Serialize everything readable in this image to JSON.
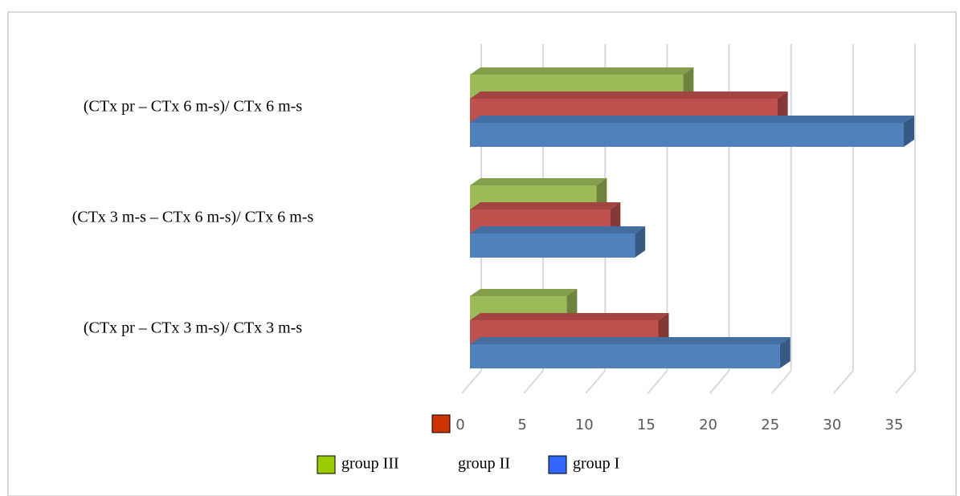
{
  "chart_data": {
    "type": "bar3d",
    "orientation": "horizontal",
    "categories": [
      "(CTx pr – CTx 6 m-s)/ CTx 6 m-s",
      "(CTx 3 m-s – CTx 6 m-s)/ CTx 6 m-s",
      "(CTx pr – CTx 3 m-s)/ CTx 3 m-s"
    ],
    "series": [
      {
        "name": "group I",
        "color": "#4f81bd",
        "values": [
          35,
          13.3,
          25
        ]
      },
      {
        "name": "group II",
        "color": "#c0504d",
        "values": [
          24.8,
          11.3,
          15.2
        ]
      },
      {
        "name": "group III",
        "color": "#9bbb59",
        "values": [
          17.2,
          10.2,
          7.8
        ]
      }
    ],
    "xlim": [
      0,
      35
    ],
    "xticks": [
      0,
      5,
      10,
      15,
      20,
      25,
      30,
      35
    ],
    "grid": true
  }
}
